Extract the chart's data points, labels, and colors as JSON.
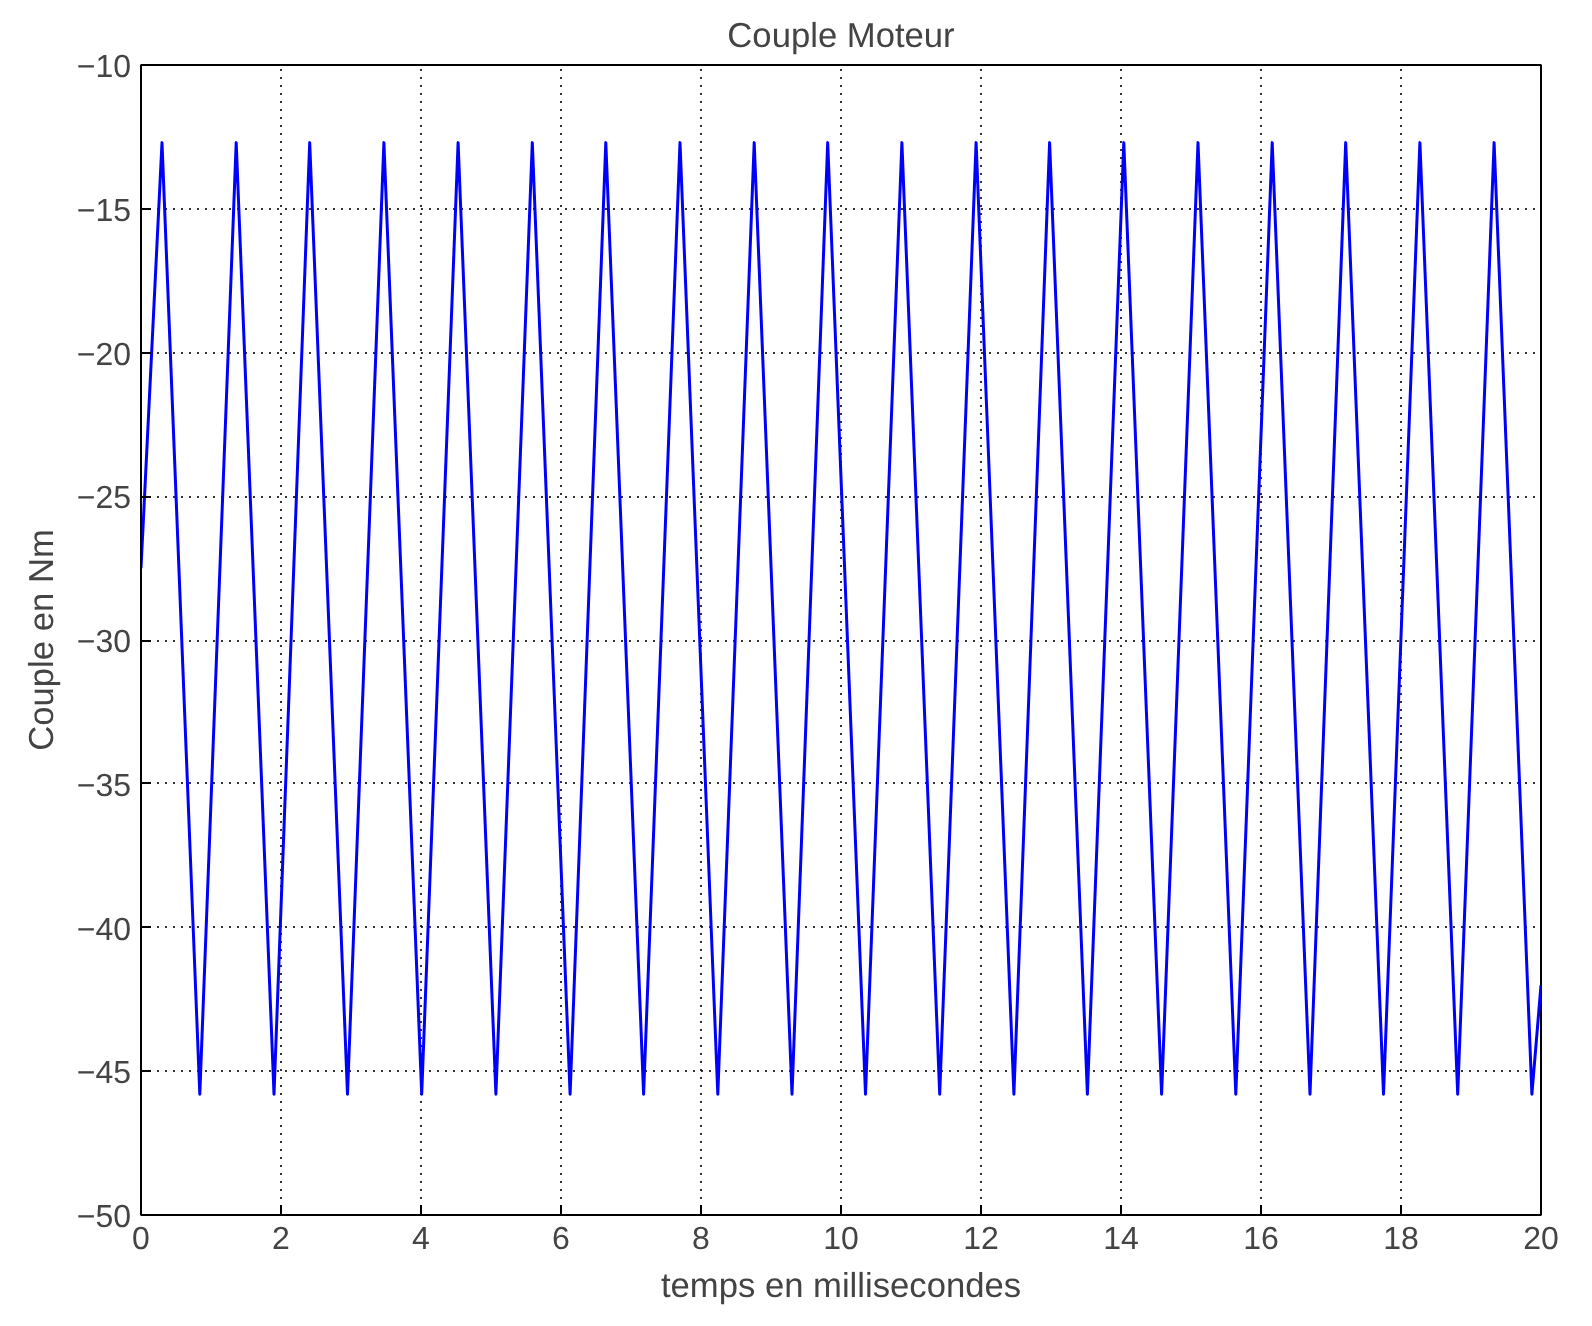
{
  "chart_data": {
    "type": "line",
    "title": "Couple Moteur",
    "xlabel": "temps en millisecondes",
    "ylabel": "Couple en Nm",
    "xlim": [
      0,
      20
    ],
    "xticks": [
      0,
      2,
      4,
      6,
      8,
      10,
      12,
      14,
      16,
      18,
      20
    ],
    "ylim": [
      -50,
      -10
    ],
    "yticks": [
      -50,
      -45,
      -40,
      -35,
      -30,
      -25,
      -20,
      -15,
      -10
    ],
    "grid": true,
    "marker": "none",
    "line_style": "solid",
    "series": [
      {
        "color": "#0000ff",
        "x": [
          0,
          0.3,
          0.84,
          1.36,
          1.9,
          2.41,
          2.95,
          3.47,
          4.01,
          4.53,
          5.07,
          5.59,
          6.13,
          6.64,
          7.18,
          7.7,
          8.24,
          8.76,
          9.3,
          9.81,
          10.35,
          10.87,
          11.41,
          11.93,
          12.47,
          12.98,
          13.52,
          14.04,
          14.58,
          15.1,
          15.64,
          16.16,
          16.7,
          17.21,
          17.75,
          18.27,
          18.81,
          19.33,
          19.87,
          20
        ],
        "values": [
          -27.5,
          -12.7,
          -45.8,
          -12.7,
          -45.8,
          -12.7,
          -45.8,
          -12.7,
          -45.8,
          -12.7,
          -45.8,
          -12.7,
          -45.8,
          -12.7,
          -45.8,
          -12.7,
          -45.8,
          -12.7,
          -45.8,
          -12.7,
          -45.8,
          -12.7,
          -45.8,
          -12.7,
          -45.8,
          -12.7,
          -45.8,
          -12.7,
          -45.8,
          -12.7,
          -45.8,
          -12.7,
          -45.8,
          -12.7,
          -45.8,
          -12.7,
          -45.8,
          -12.7,
          -45.8,
          -42
        ]
      }
    ]
  }
}
